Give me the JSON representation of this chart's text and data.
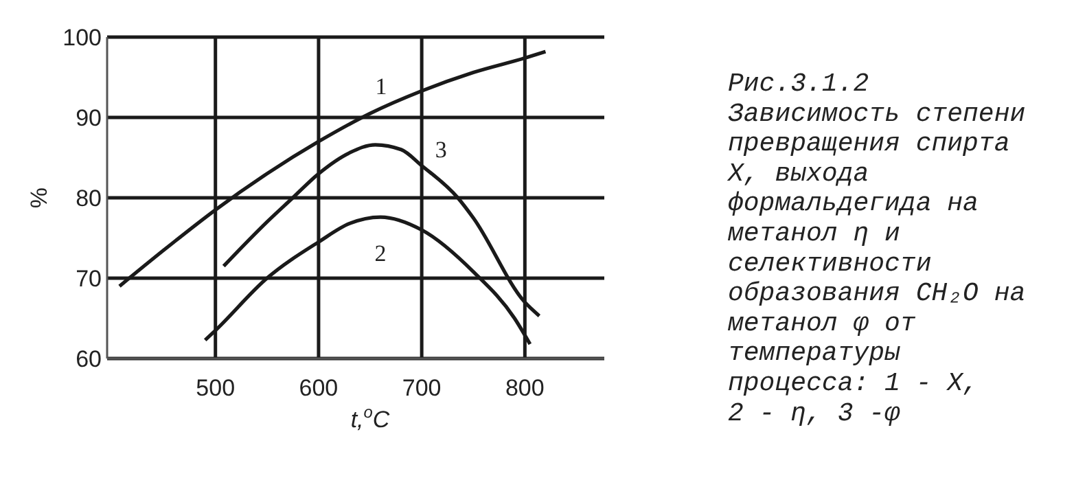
{
  "chart_data": {
    "type": "line",
    "xlabel": "t,$^{o}$C",
    "ylabel": "%",
    "xlim": [
      395,
      877
    ],
    "xticks": [
      500,
      600,
      700,
      800
    ],
    "ylim": [
      60,
      100
    ],
    "yticks": [
      60,
      70,
      80,
      90,
      100
    ],
    "grid": true,
    "marker": "none",
    "line_style": "solid",
    "series": [
      {
        "name": "1",
        "color": "#1a1a1a",
        "x": [
          407,
          450,
          500,
          550,
          600,
          650,
          700,
          750,
          800,
          820
        ],
        "values": [
          69,
          73.5,
          78.5,
          83,
          87,
          90.5,
          93.3,
          95.6,
          97.4,
          98.2
        ]
      },
      {
        "name": "2",
        "color": "#1a1a1a",
        "x": [
          490,
          500,
          550,
          600,
          630,
          660,
          700,
          750,
          790,
          805
        ],
        "values": [
          62.3,
          63.5,
          70,
          74.5,
          76.8,
          77.6,
          76,
          70.8,
          65,
          61.8
        ]
      },
      {
        "name": "3",
        "color": "#1a1a1a",
        "x": [
          508,
          550,
          575,
          600,
          630,
          655,
          680,
          700,
          735,
          750,
          800,
          814
        ],
        "values": [
          71.5,
          77,
          80,
          83,
          85.6,
          86.6,
          86,
          84,
          80,
          77.5,
          67,
          65.3
        ]
      }
    ],
    "annotations": [
      "Рис.3.1.2",
      "Зависимость степени",
      "превращения спирта",
      "X, выхода",
      "формальдегида на",
      "метанол η и",
      "селективности",
      "образования CH₂O на",
      "метанол φ  от",
      "температуры",
      "процесса: 1 - X,",
      "2 - η, 3 -φ"
    ]
  }
}
